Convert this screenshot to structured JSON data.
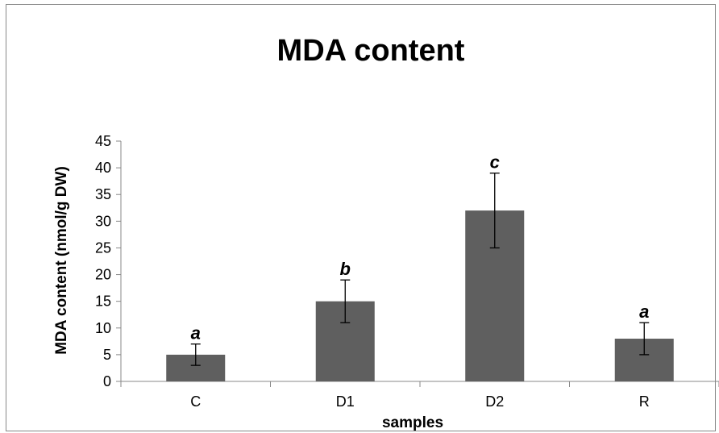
{
  "chart_data": {
    "type": "bar",
    "title": "MDA content",
    "xlabel": "samples",
    "ylabel": "MDA content (nmol/g DW)",
    "categories": [
      "C",
      "D1",
      "D2",
      "R"
    ],
    "values": [
      5,
      15,
      32,
      8
    ],
    "error_low": [
      3,
      11,
      25,
      5
    ],
    "error_high": [
      7,
      19,
      39,
      11
    ],
    "significance_labels": [
      "a",
      "b",
      "c",
      "a"
    ],
    "ylim": [
      0,
      45
    ],
    "yticks": [
      0,
      5,
      10,
      15,
      20,
      25,
      30,
      35,
      40,
      45
    ],
    "grid": false,
    "legend": "none",
    "colors": {
      "bar": "#5f5f5f",
      "axis": "#888888",
      "text": "#000000"
    }
  }
}
